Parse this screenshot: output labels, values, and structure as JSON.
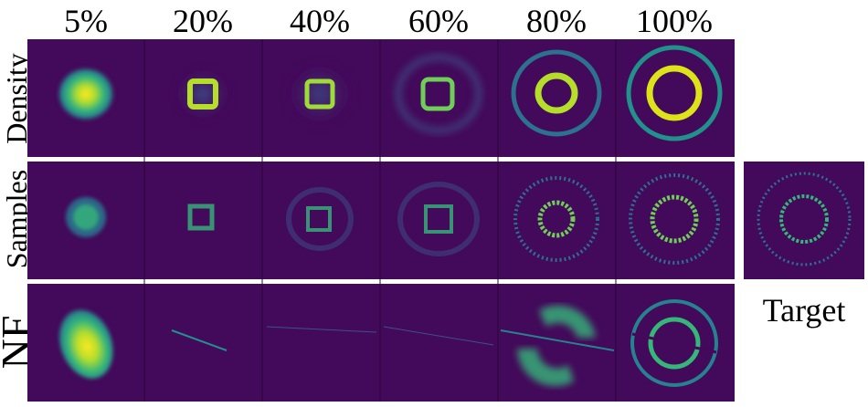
{
  "columns": [
    "5%",
    "20%",
    "40%",
    "60%",
    "80%",
    "100%"
  ],
  "rows": [
    "Density",
    "Samples",
    "NF"
  ],
  "target_label": "Target",
  "colors": {
    "background": "#43095a",
    "mid": "#1f9e89",
    "bright": "#fde725",
    "teal": "#26828e",
    "grid_line": "#2a0637"
  },
  "panels": {
    "Density": [
      "blob",
      "square-ring",
      "square-ring",
      "square-ring",
      "ring+outer",
      "ring+outer"
    ],
    "Samples": [
      "blob-noise",
      "square-noise",
      "square-noise",
      "square-noise",
      "ring-noise",
      "ring-noise"
    ],
    "NF": [
      "ellipse",
      "streak",
      "faint-streak",
      "faint-streak",
      "split-ring",
      "split-double-ring"
    ]
  }
}
